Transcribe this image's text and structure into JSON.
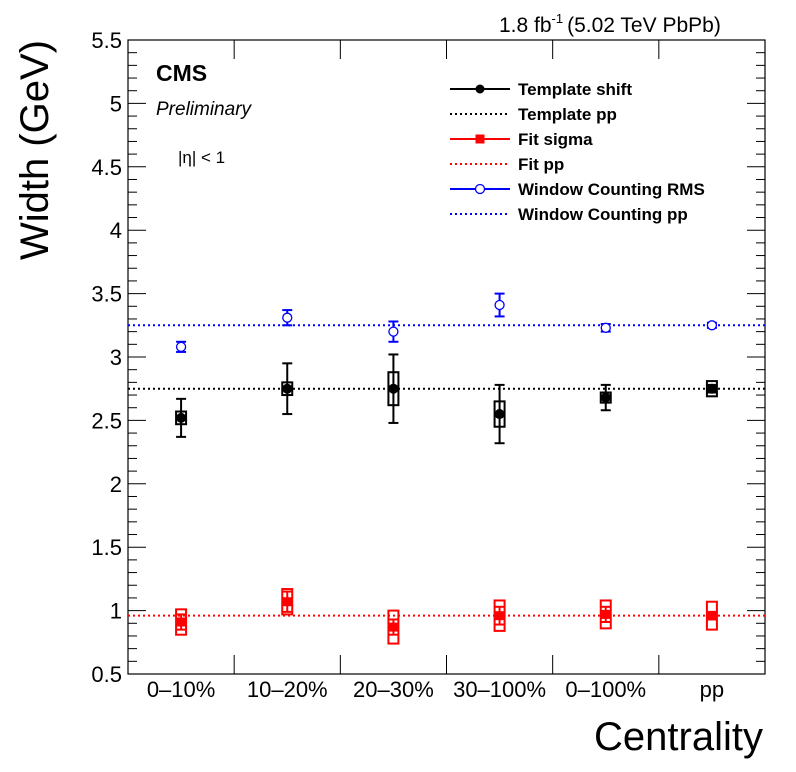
{
  "chart_data": {
    "type": "scatter",
    "header_lumi": "1.8 fb",
    "header_lumi_exp": "-1",
    "header_energy": "(5.02 TeV PbPb)",
    "experiment": "CMS",
    "status": "Preliminary",
    "selection": "|η| < 1",
    "xlabel": "Centrality",
    "ylabel": "Width (GeV)",
    "ylim": [
      0.5,
      5.5
    ],
    "yticks": [
      "0.5",
      "1",
      "1.5",
      "2",
      "2.5",
      "3",
      "3.5",
      "4",
      "4.5",
      "5",
      "5.5"
    ],
    "categories": [
      "0–10%",
      "10–20%",
      "20–30%",
      "30–100%",
      "0–100%",
      "pp"
    ],
    "series": [
      {
        "name": "Template shift",
        "color": "#000000",
        "marker": "filled-circle",
        "values": [
          2.52,
          2.75,
          2.75,
          2.55,
          2.68,
          2.75
        ],
        "stat_err": [
          0.15,
          0.2,
          0.27,
          0.23,
          0.1,
          0.03
        ],
        "syst_err": [
          0.05,
          0.05,
          0.13,
          0.1,
          0.04,
          0.06
        ]
      },
      {
        "name": "Fit sigma",
        "color": "#ff0000",
        "marker": "filled-square",
        "values": [
          0.91,
          1.07,
          0.87,
          0.96,
          0.97,
          0.96
        ],
        "stat_err": [
          0.06,
          0.08,
          0.06,
          0.07,
          0.06,
          0.03
        ],
        "syst_err": [
          0.1,
          0.1,
          0.13,
          0.12,
          0.11,
          0.11
        ]
      },
      {
        "name": "Window Counting RMS",
        "color": "#0000ff",
        "marker": "open-circle",
        "values": [
          3.08,
          3.31,
          3.2,
          3.41,
          3.23,
          3.25
        ],
        "stat_err": [
          0.04,
          0.06,
          0.08,
          0.09,
          0.03,
          0.02
        ],
        "syst_err": [
          0,
          0,
          0,
          0,
          0,
          0
        ]
      }
    ],
    "reference_lines": [
      {
        "name": "Template pp",
        "value": 2.75,
        "color": "#000000"
      },
      {
        "name": "Fit pp",
        "value": 0.96,
        "color": "#ff0000"
      },
      {
        "name": "Window Counting pp",
        "value": 3.25,
        "color": "#0000ff"
      }
    ],
    "legend": [
      {
        "label": "Template shift",
        "style": "marker-line",
        "marker": "filled-circle",
        "color": "#000000"
      },
      {
        "label": "Template pp",
        "style": "dotted",
        "color": "#000000"
      },
      {
        "label": "Fit sigma",
        "style": "marker-line",
        "marker": "filled-square",
        "color": "#ff0000"
      },
      {
        "label": "Fit pp",
        "style": "dotted",
        "color": "#ff0000"
      },
      {
        "label": "Window Counting RMS",
        "style": "marker-line",
        "marker": "open-circle",
        "color": "#0000ff"
      },
      {
        "label": "Window Counting pp",
        "style": "dotted",
        "color": "#0000ff"
      }
    ],
    "legend_position": "top-right",
    "grid": false
  }
}
